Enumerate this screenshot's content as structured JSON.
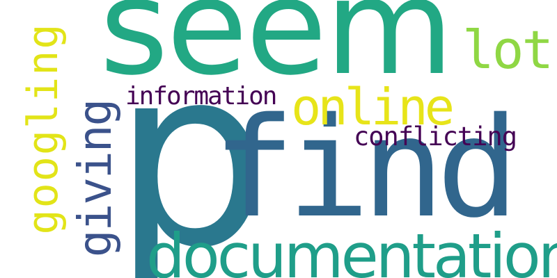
{
  "word_cloud": {
    "background": "#ffffff",
    "words": [
      {
        "text": "seem",
        "color": "#22a884"
      },
      {
        "text": "p",
        "color": "#2a788e"
      },
      {
        "text": "find",
        "color": "#31668d"
      },
      {
        "text": "documentation",
        "color": "#1f9e89"
      },
      {
        "text": "online",
        "color": "#e7e419"
      },
      {
        "text": "lot",
        "color": "#8fd744"
      },
      {
        "text": "googling",
        "color": "#e2e418"
      },
      {
        "text": "giving",
        "color": "#3b528b"
      },
      {
        "text": "information",
        "color": "#440154"
      },
      {
        "text": "conflicting",
        "color": "#440154"
      }
    ]
  }
}
